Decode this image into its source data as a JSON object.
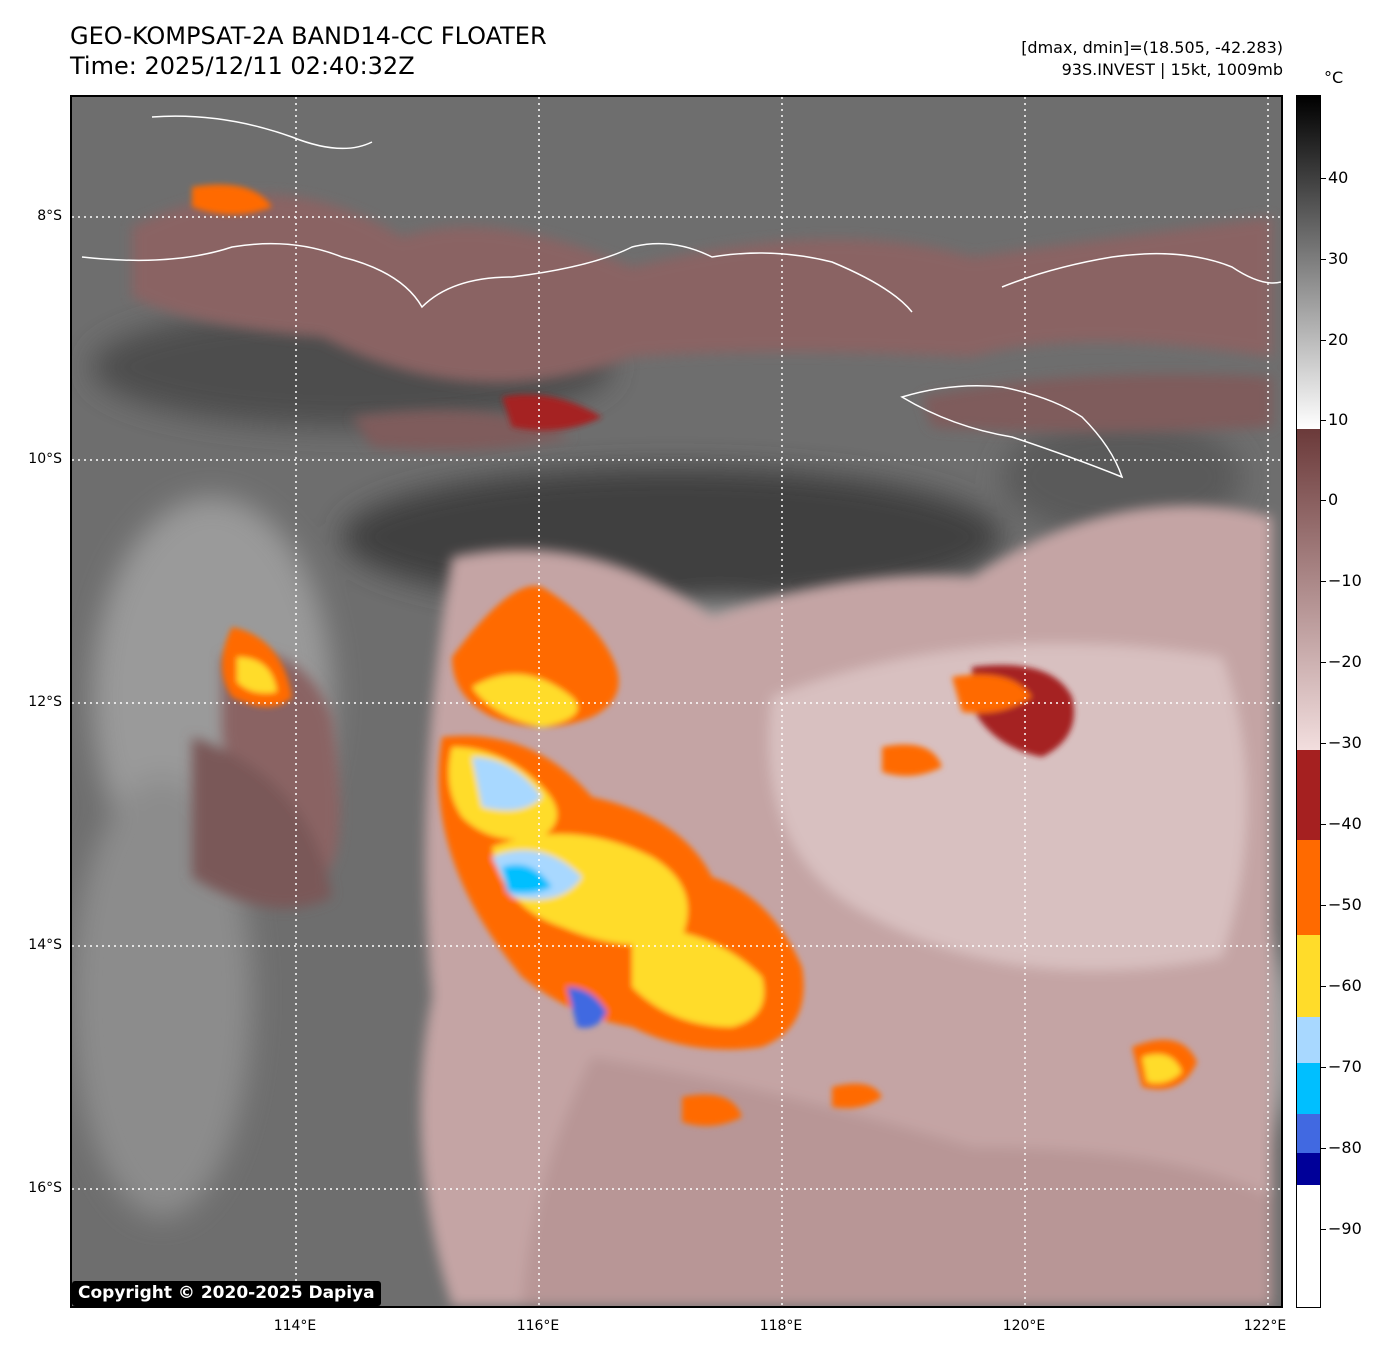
{
  "header": {
    "title": "GEO-KOMPSAT-2A BAND14-CC FLOATER",
    "time": "Time: 2025/12/11 02:40:32Z",
    "range_info": "[dmax, dmin]=(18.505, -42.283)",
    "storm_info": "93S.INVEST | 15kt, 1009mb"
  },
  "map": {
    "lat_labels": [
      "8°S",
      "10°S",
      "12°S",
      "14°S",
      "16°S"
    ],
    "lon_labels": [
      "114°E",
      "116°E",
      "118°E",
      "120°E",
      "122°E"
    ],
    "copyright": "Copyright © 2020-2025 Dapiya"
  },
  "colorbar": {
    "unit": "°C",
    "labels": [
      "40",
      "30",
      "20",
      "10",
      "0",
      "−10",
      "−20",
      "−30",
      "−40",
      "−50",
      "−60",
      "−70",
      "−80",
      "−90"
    ],
    "colors": {
      "warm_black": "#000000",
      "gray_white": "#ffffff",
      "brown_dark": "#6b3a3a",
      "pink_light": "#f0d6d6",
      "red": "#a52020",
      "orange": "#ff6a00",
      "yellow": "#ffdc2a",
      "light_blue": "#a8d8ff",
      "cyan": "#00bfff",
      "blue": "#4169e1",
      "navy": "#000099",
      "white": "#ffffff"
    }
  }
}
